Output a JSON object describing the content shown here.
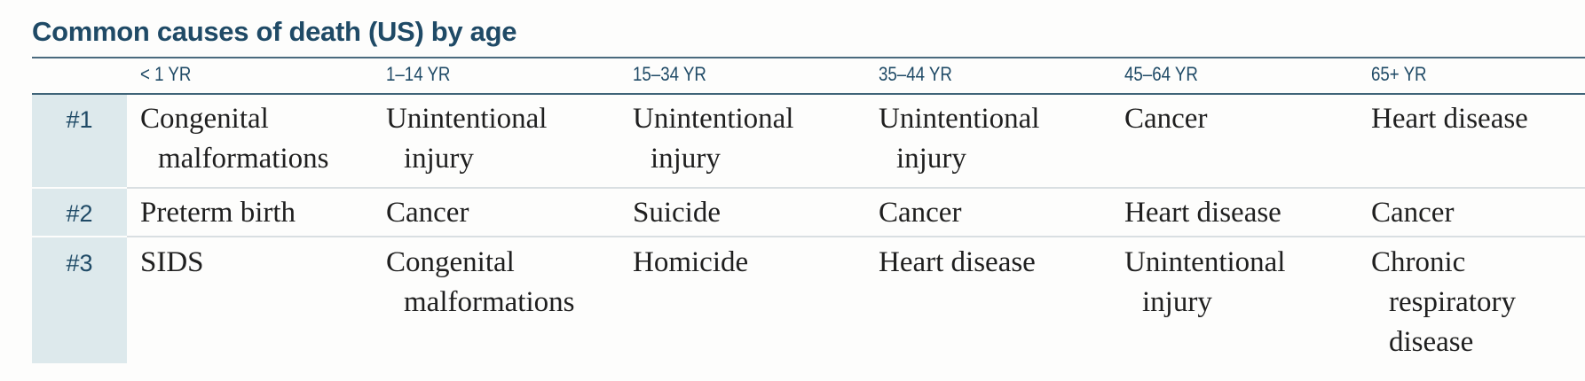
{
  "title": "Common causes of death (US) by age",
  "columns": [
    "< 1 YR",
    "1–14 YR",
    "15–34 YR",
    "35–44 YR",
    "45–64 YR",
    "65+ YR"
  ],
  "rows": [
    {
      "rank": "#1",
      "cells": [
        [
          "Congenital",
          "malformations"
        ],
        [
          "Unintentional",
          "injury"
        ],
        [
          "Unintentional",
          "injury"
        ],
        [
          "Unintentional",
          "injury"
        ],
        [
          "Cancer"
        ],
        [
          "Heart disease"
        ]
      ]
    },
    {
      "rank": "#2",
      "cells": [
        [
          "Preterm birth"
        ],
        [
          "Cancer"
        ],
        [
          "Suicide"
        ],
        [
          "Cancer"
        ],
        [
          "Heart disease"
        ],
        [
          "Cancer"
        ]
      ]
    },
    {
      "rank": "#3",
      "cells": [
        [
          "SIDS"
        ],
        [
          "Congenital",
          "malformations"
        ],
        [
          "Homicide"
        ],
        [
          "Heart disease"
        ],
        [
          "Unintentional",
          "injury"
        ],
        [
          "Chronic",
          "respiratory",
          "disease"
        ]
      ]
    }
  ],
  "colors": {
    "heading": "#1f4a66",
    "rank_band": "#dde9ec",
    "rule": "#3f6478"
  }
}
